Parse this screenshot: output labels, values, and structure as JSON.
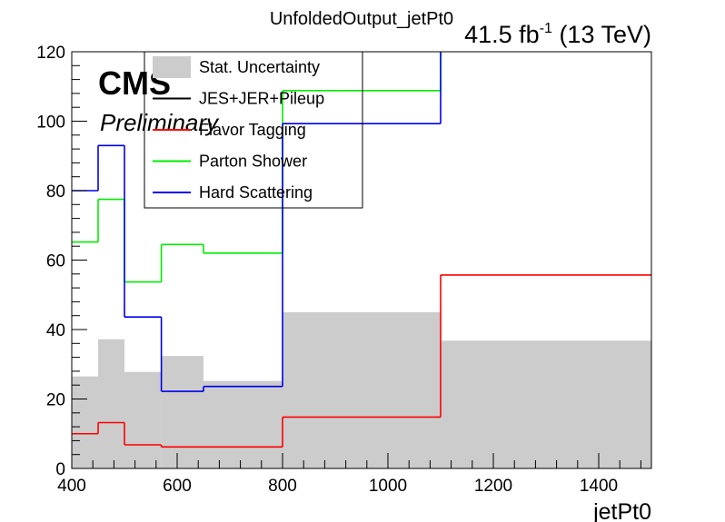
{
  "chart_data": {
    "type": "histogram",
    "title": "UnfoldedOutput_jetPt0",
    "lumi_label": "41.5 fb",
    "lumi_exponent": "-1",
    "energy_label": "(13 TeV)",
    "experiment_label": "CMS",
    "status_label": "Preliminary",
    "xlabel": "jetPt0",
    "xlim": [
      400,
      1500
    ],
    "ylim": [
      0,
      120
    ],
    "x_ticks": [
      400,
      600,
      800,
      1000,
      1200,
      1400
    ],
    "y_ticks": [
      0,
      20,
      40,
      60,
      80,
      100,
      120
    ],
    "bin_edges": [
      400,
      450,
      500,
      570,
      650,
      800,
      1100,
      1500
    ],
    "legend_position": "top-left",
    "stat_uncertainty": {
      "name": "Stat. Uncertainty",
      "color": "#cccccc",
      "values": [
        26.5,
        37.2,
        27.8,
        32.4,
        25.2,
        45.0,
        36.8
      ]
    },
    "series": [
      {
        "name": "JES+JER+Pileup",
        "color": "#000000",
        "values": [
          null,
          null,
          null,
          null,
          null,
          null,
          null
        ]
      },
      {
        "name": "Flavor Tagging",
        "color": "#ff0000",
        "values": [
          10.0,
          13.2,
          6.8,
          6.2,
          6.2,
          14.8,
          55.7
        ]
      },
      {
        "name": "Parton Shower",
        "color": "#00ee00",
        "values": [
          65.2,
          77.5,
          53.7,
          64.5,
          62.0,
          108.8,
          null
        ]
      },
      {
        "name": "Hard Scattering",
        "color": "#0000ee",
        "values": [
          80.0,
          93.0,
          43.6,
          22.2,
          23.6,
          99.3,
          null
        ]
      }
    ]
  }
}
